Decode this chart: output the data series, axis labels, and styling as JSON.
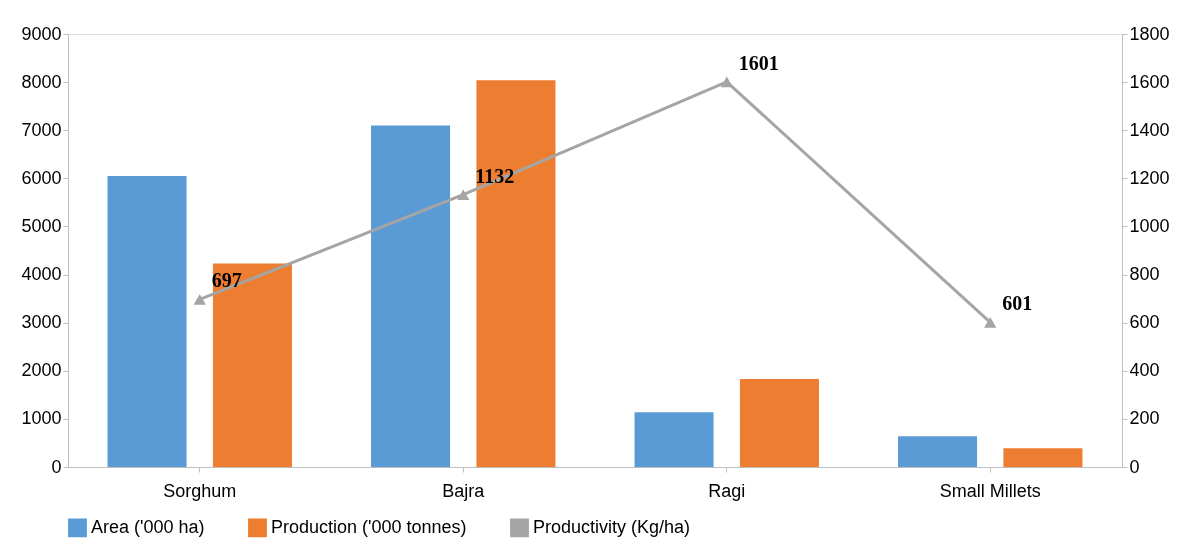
{
  "chart_data": {
    "type": "bar",
    "categories": [
      "Sorghum",
      "Bajra",
      "Ragi",
      "Small Millets"
    ],
    "series": [
      {
        "name": "Area ('000 ha)",
        "color": "#5b9bd5",
        "values": [
          6050,
          7100,
          1140,
          640
        ]
      },
      {
        "name": "Production ('000 tonnes)",
        "color": "#ed7d31",
        "values": [
          4230,
          8040,
          1830,
          390
        ]
      },
      {
        "name": "Productivity  (Kg/ha)",
        "type": "line",
        "axis": "y2",
        "color": "#a5a5a5",
        "marker": "triangle",
        "values": [
          697,
          1132,
          1601,
          601
        ],
        "value_labels": [
          "697",
          "1132",
          "1601",
          "601"
        ]
      }
    ],
    "ylim": [
      0,
      9000
    ],
    "yticks": [
      0,
      1000,
      2000,
      3000,
      4000,
      5000,
      6000,
      7000,
      8000,
      9000
    ],
    "y2lim": [
      0,
      1800
    ],
    "y2ticks": [
      0,
      200,
      400,
      600,
      800,
      1000,
      1200,
      1400,
      1600,
      1800
    ],
    "grid": false,
    "legend": "bottom"
  }
}
